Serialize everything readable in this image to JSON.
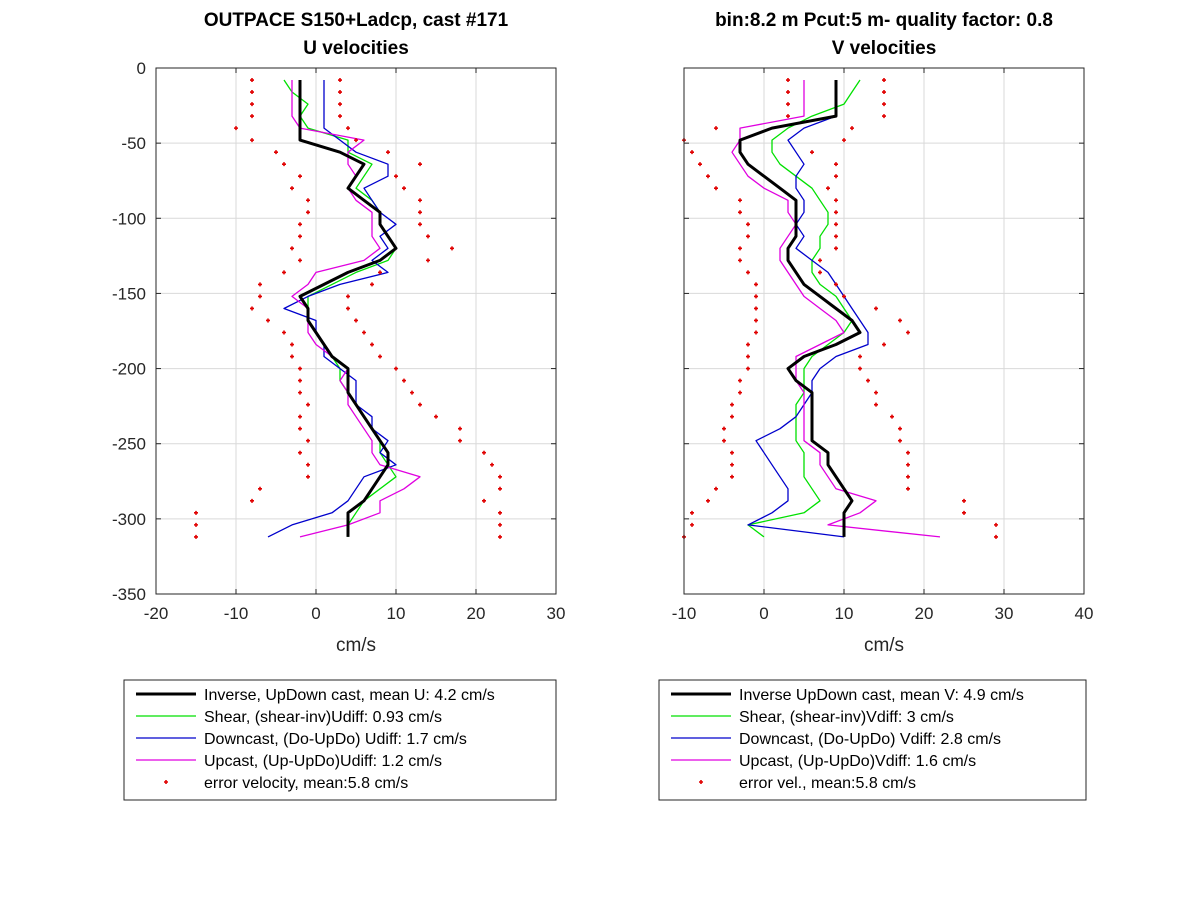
{
  "chart_data": [
    {
      "type": "line",
      "title": "OUTPACE S150+Ladcp, cast #171",
      "subtitle": "U velocities",
      "xlabel": "cm/s",
      "ylabel": "",
      "xlim": [
        -20,
        30
      ],
      "ylim": [
        -350,
        0
      ],
      "xticks": [
        -20,
        -10,
        0,
        10,
        20,
        30
      ],
      "yticks": [
        0,
        -50,
        -100,
        -150,
        -200,
        -250,
        -300,
        -350
      ],
      "grid": true,
      "legend_position": "below",
      "series": [
        {
          "name": "Inverse, UpDown cast, mean U:  4.2 cm/s",
          "color": "#000000",
          "width": 3,
          "style": "line",
          "depth": [
            -8,
            -16,
            -24,
            -32,
            -40,
            -48,
            -56,
            -64,
            -72,
            -80,
            -88,
            -96,
            -104,
            -112,
            -120,
            -128,
            -136,
            -144,
            -152,
            -160,
            -168,
            -176,
            -184,
            -192,
            -200,
            -208,
            -216,
            -224,
            -232,
            -240,
            -248,
            -256,
            -264,
            -272,
            -280,
            -288,
            -296,
            -304,
            -312
          ],
          "values": [
            -2,
            -2,
            -2,
            -2,
            -2,
            -2,
            3,
            6,
            5,
            4,
            6,
            8,
            8,
            9,
            10,
            8,
            4,
            1,
            -2,
            -1,
            -1,
            0,
            1,
            2,
            4,
            4,
            4,
            5,
            6,
            7,
            8,
            9,
            9,
            8,
            7,
            6,
            4,
            4,
            4
          ]
        },
        {
          "name": "Shear, (shear-inv)Udiff:  0.93 cm/s",
          "color": "#00e000",
          "width": 1.3,
          "style": "line",
          "depth": [
            -8,
            -16,
            -24,
            -32,
            -40,
            -48,
            -56,
            -64,
            -72,
            -80,
            -88,
            -96,
            -104,
            -112,
            -120,
            -128,
            -136,
            -144,
            -152,
            -160,
            -168,
            -176,
            -184,
            -192,
            -200,
            -208,
            -216,
            -224,
            -232,
            -240,
            -248,
            -256,
            -264,
            -272,
            -280,
            -288,
            -296,
            -304,
            -312
          ],
          "values": [
            -4,
            -3,
            -1,
            -2,
            -1,
            4,
            4,
            7,
            6,
            5,
            7,
            8,
            8,
            9,
            10,
            9,
            5,
            2,
            -1,
            -1,
            -1,
            0,
            1,
            2,
            3,
            3,
            4,
            5,
            6,
            7,
            8,
            8,
            9,
            10,
            8,
            6,
            5,
            4,
            4
          ]
        },
        {
          "name": "Downcast, (Do-UpDo) Udiff:  1.7 cm/s",
          "color": "#0000cc",
          "width": 1.3,
          "style": "line",
          "depth": [
            -8,
            -16,
            -24,
            -32,
            -40,
            -48,
            -56,
            -64,
            -72,
            -80,
            -88,
            -96,
            -104,
            -112,
            -120,
            -128,
            -136,
            -144,
            -152,
            -160,
            -168,
            -176,
            -184,
            -192,
            -200,
            -208,
            -216,
            -224,
            -232,
            -240,
            -248,
            -256,
            -264,
            -272,
            -280,
            -288,
            -296,
            -304,
            -312
          ],
          "values": [
            1,
            1,
            1,
            1,
            1,
            3,
            5,
            9,
            9,
            6,
            7,
            8,
            10,
            8,
            9,
            7,
            9,
            3,
            -1,
            -4,
            0,
            0,
            1,
            1,
            3,
            5,
            5,
            5,
            7,
            7,
            9,
            8,
            10,
            6,
            5,
            4,
            2,
            -3,
            -6
          ]
        },
        {
          "name": "Upcast, (Up-UpDo)Udiff:  1.2 cm/s",
          "color": "#e000e0",
          "width": 1.3,
          "style": "line",
          "depth": [
            -8,
            -16,
            -24,
            -32,
            -40,
            -48,
            -56,
            -64,
            -72,
            -80,
            -88,
            -96,
            -104,
            -112,
            -120,
            -128,
            -136,
            -144,
            -152,
            -160,
            -168,
            -176,
            -184,
            -192,
            -200,
            -208,
            -216,
            -224,
            -232,
            -240,
            -248,
            -256,
            -264,
            -272,
            -280,
            -288,
            -296,
            -304,
            -312
          ],
          "values": [
            -3,
            -3,
            -3,
            -3,
            -2,
            6,
            4,
            4,
            5,
            4,
            5,
            7,
            7,
            7,
            8,
            6,
            0,
            -1,
            -3,
            -1,
            -1,
            -1,
            0,
            2,
            4,
            3,
            4,
            4,
            5,
            6,
            7,
            7,
            8,
            13,
            11,
            8,
            8,
            4,
            -2
          ]
        },
        {
          "name": "error velocity, mean:5.8 cm/s",
          "color": "#e00000",
          "width": 0,
          "style": "dots",
          "depth": [
            -8,
            -16,
            -24,
            -32,
            -40,
            -48,
            -56,
            -64,
            -72,
            -80,
            -88,
            -96,
            -104,
            -112,
            -120,
            -128,
            -136,
            -144,
            -152,
            -160,
            -168,
            -176,
            -184,
            -192,
            -200,
            -208,
            -216,
            -224,
            -232,
            -240,
            -248,
            -256,
            -264,
            -272,
            -280,
            -288,
            -296,
            -304,
            -312
          ],
          "values": [
            -8,
            -8,
            -8,
            -8,
            -10,
            -8,
            -5,
            -4,
            -2,
            -3,
            -1,
            -1,
            -2,
            -2,
            -3,
            -2,
            -4,
            -7,
            -7,
            -8,
            -6,
            -4,
            -3,
            -3,
            -2,
            -2,
            -2,
            -1,
            -2,
            -2,
            -1,
            -2,
            -1,
            -1,
            -7,
            -8,
            -15,
            -15,
            -15
          ],
          "values2": [
            3,
            3,
            3,
            3,
            4,
            5,
            9,
            13,
            10,
            11,
            13,
            13,
            13,
            14,
            17,
            14,
            8,
            7,
            4,
            4,
            5,
            6,
            7,
            8,
            10,
            11,
            12,
            13,
            15,
            18,
            18,
            21,
            22,
            23,
            23,
            21,
            23,
            23,
            23
          ]
        }
      ]
    },
    {
      "type": "line",
      "title": "bin:8.2 m  Pcut:5 m- quality factor:  0.8",
      "subtitle": "V velocities",
      "xlabel": "cm/s",
      "ylabel": "",
      "xlim": [
        -10,
        40
      ],
      "ylim": [
        -350,
        0
      ],
      "xticks": [
        -10,
        0,
        10,
        20,
        30,
        40
      ],
      "yticks": [
        0,
        -50,
        -100,
        -150,
        -200,
        -250,
        -300,
        -350
      ],
      "grid": true,
      "legend_position": "below",
      "series": [
        {
          "name": "Inverse UpDown cast, mean V:  4.9 cm/s",
          "color": "#000000",
          "width": 3,
          "style": "line",
          "depth": [
            -8,
            -16,
            -24,
            -32,
            -40,
            -48,
            -56,
            -64,
            -72,
            -80,
            -88,
            -96,
            -104,
            -112,
            -120,
            -128,
            -136,
            -144,
            -152,
            -160,
            -168,
            -176,
            -184,
            -192,
            -200,
            -208,
            -216,
            -224,
            -232,
            -240,
            -248,
            -256,
            -264,
            -272,
            -280,
            -288,
            -296,
            -304,
            -312
          ],
          "values": [
            9,
            9,
            9,
            9,
            1,
            -3,
            -3,
            -2,
            0,
            2,
            4,
            4,
            4,
            4,
            3,
            3,
            4,
            5,
            7,
            9,
            11,
            12,
            9,
            5,
            3,
            4,
            6,
            6,
            6,
            6,
            6,
            8,
            8,
            9,
            10,
            11,
            10,
            10,
            10
          ]
        },
        {
          "name": "Shear, (shear-inv)Vdiff:  3 cm/s",
          "color": "#00e000",
          "width": 1.3,
          "style": "line",
          "depth": [
            -8,
            -16,
            -24,
            -32,
            -40,
            -48,
            -56,
            -64,
            -72,
            -80,
            -88,
            -96,
            -104,
            -112,
            -120,
            -128,
            -136,
            -144,
            -152,
            -160,
            -168,
            -176,
            -184,
            -192,
            -200,
            -208,
            -216,
            -224,
            -232,
            -240,
            -248,
            -256,
            -264,
            -272,
            -280,
            -288,
            -296,
            -304,
            -312
          ],
          "values": [
            12,
            11,
            10,
            6,
            3,
            1,
            1,
            2,
            4,
            6,
            7,
            8,
            8,
            7,
            7,
            6,
            6,
            7,
            9,
            10,
            11,
            10,
            8,
            6,
            5,
            5,
            5,
            4,
            4,
            4,
            4,
            5,
            5,
            5,
            6,
            7,
            5,
            -2,
            0
          ]
        },
        {
          "name": "Downcast, (Do-UpDo) Vdiff:  2.8 cm/s",
          "color": "#0000cc",
          "width": 1.3,
          "style": "line",
          "depth": [
            -8,
            -16,
            -24,
            -32,
            -40,
            -48,
            -56,
            -64,
            -72,
            -80,
            -88,
            -96,
            -104,
            -112,
            -120,
            -128,
            -136,
            -144,
            -152,
            -160,
            -168,
            -176,
            -184,
            -192,
            -200,
            -208,
            -216,
            -224,
            -232,
            -240,
            -248,
            -256,
            -264,
            -272,
            -280,
            -288,
            -296,
            -304,
            -312
          ],
          "values": [
            9,
            9,
            9,
            9,
            5,
            3,
            4,
            5,
            4,
            4,
            5,
            5,
            4,
            5,
            4,
            6,
            8,
            9,
            10,
            11,
            12,
            13,
            13,
            9,
            7,
            6,
            6,
            5,
            4,
            2,
            -1,
            0,
            1,
            2,
            3,
            3,
            1,
            -2,
            10
          ]
        },
        {
          "name": "Upcast, (Up-UpDo)Vdiff:  1.6 cm/s",
          "color": "#e000e0",
          "width": 1.3,
          "style": "line",
          "depth": [
            -8,
            -16,
            -24,
            -32,
            -40,
            -48,
            -56,
            -64,
            -72,
            -80,
            -88,
            -96,
            -104,
            -112,
            -120,
            -128,
            -136,
            -144,
            -152,
            -160,
            -168,
            -176,
            -184,
            -192,
            -200,
            -208,
            -216,
            -224,
            -232,
            -240,
            -248,
            -256,
            -264,
            -272,
            -280,
            -288,
            -296,
            -304,
            -312
          ],
          "values": [
            5,
            5,
            5,
            5,
            -3,
            -3,
            -4,
            -3,
            -2,
            0,
            3,
            3,
            4,
            3,
            2,
            2,
            3,
            4,
            5,
            7,
            9,
            10,
            7,
            4,
            4,
            4,
            5,
            5,
            5,
            5,
            5,
            7,
            7,
            8,
            9,
            14,
            12,
            8,
            22
          ]
        },
        {
          "name": "error vel., mean:5.8 cm/s",
          "color": "#e00000",
          "width": 0,
          "style": "dots",
          "depth": [
            -8,
            -16,
            -24,
            -32,
            -40,
            -48,
            -56,
            -64,
            -72,
            -80,
            -88,
            -96,
            -104,
            -112,
            -120,
            -128,
            -136,
            -144,
            -152,
            -160,
            -168,
            -176,
            -184,
            -192,
            -200,
            -208,
            -216,
            -224,
            -232,
            -240,
            -248,
            -256,
            -264,
            -272,
            -280,
            -288,
            -296,
            -304,
            -312
          ],
          "values": [
            3,
            3,
            3,
            3,
            -6,
            -10,
            -9,
            -8,
            -7,
            -6,
            -3,
            -3,
            -2,
            -2,
            -3,
            -3,
            -2,
            -1,
            -1,
            -1,
            -1,
            -1,
            -2,
            -2,
            -2,
            -3,
            -3,
            -4,
            -4,
            -5,
            -5,
            -4,
            -4,
            -4,
            -6,
            -7,
            -9,
            -9,
            -10
          ],
          "values2": [
            15,
            15,
            15,
            15,
            11,
            10,
            6,
            9,
            9,
            8,
            9,
            9,
            9,
            9,
            9,
            7,
            7,
            9,
            10,
            14,
            17,
            18,
            15,
            12,
            12,
            13,
            14,
            14,
            16,
            17,
            17,
            18,
            18,
            18,
            18,
            25,
            25,
            29,
            29
          ]
        }
      ]
    }
  ]
}
